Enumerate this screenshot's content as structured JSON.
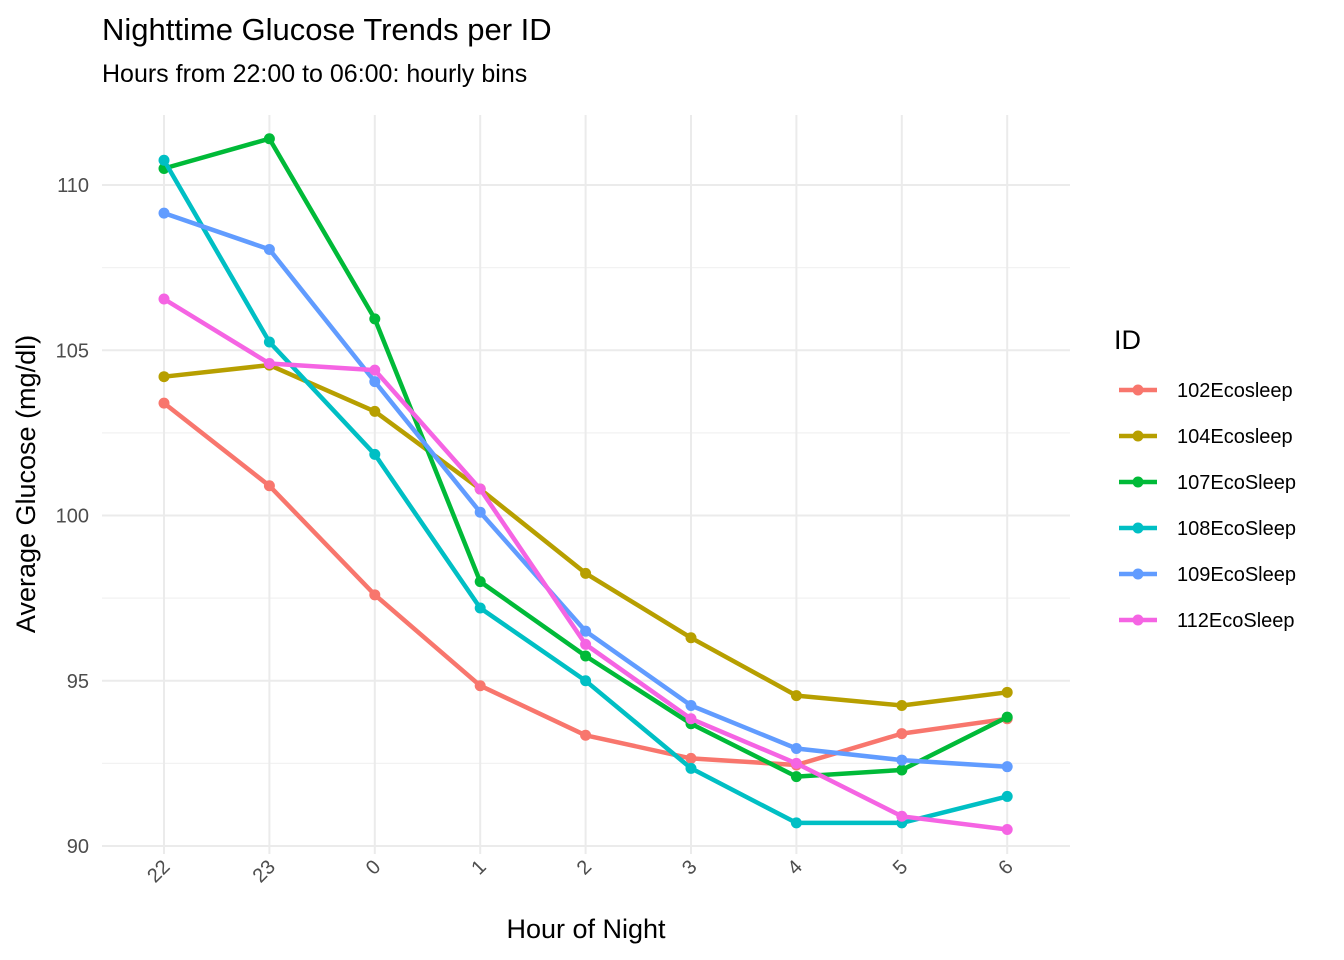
{
  "chart_data": {
    "type": "line",
    "title": "Nighttime Glucose Trends per ID",
    "subtitle": "Hours from 22:00 to 06:00: hourly bins",
    "xlabel": "Hour of Night",
    "ylabel": "Average Glucose (mg/dl)",
    "categories": [
      "22",
      "23",
      "0",
      "1",
      "2",
      "3",
      "4",
      "5",
      "6"
    ],
    "y_ticks": [
      90,
      95,
      100,
      105,
      110
    ],
    "ylim": [
      89.5,
      112.5
    ],
    "grid": true,
    "legend": {
      "title": "ID",
      "position": "right"
    },
    "series": [
      {
        "name": "102Ecosleep",
        "color": "#F8766D",
        "values": [
          103.4,
          100.9,
          97.6,
          94.85,
          93.35,
          92.65,
          92.45,
          93.4,
          93.85
        ]
      },
      {
        "name": "104Ecosleep",
        "color": "#B79F00",
        "values": [
          104.2,
          104.55,
          103.15,
          100.8,
          98.25,
          96.3,
          94.55,
          94.25,
          94.65
        ]
      },
      {
        "name": "107EcoSleep",
        "color": "#00BA38",
        "values": [
          110.5,
          111.4,
          105.95,
          98.0,
          95.75,
          93.7,
          92.1,
          92.3,
          93.9
        ]
      },
      {
        "name": "108EcoSleep",
        "color": "#00BFC4",
        "values": [
          110.75,
          105.25,
          101.85,
          97.2,
          95.0,
          92.35,
          90.7,
          90.7,
          91.5
        ]
      },
      {
        "name": "109EcoSleep",
        "color": "#619CFF",
        "values": [
          109.15,
          108.05,
          104.05,
          100.1,
          96.5,
          94.25,
          92.95,
          92.6,
          92.4
        ]
      },
      {
        "name": "112EcoSleep",
        "color": "#F564E3",
        "values": [
          106.55,
          104.6,
          104.4,
          100.8,
          96.1,
          93.85,
          92.5,
          90.9,
          90.5
        ]
      }
    ]
  }
}
